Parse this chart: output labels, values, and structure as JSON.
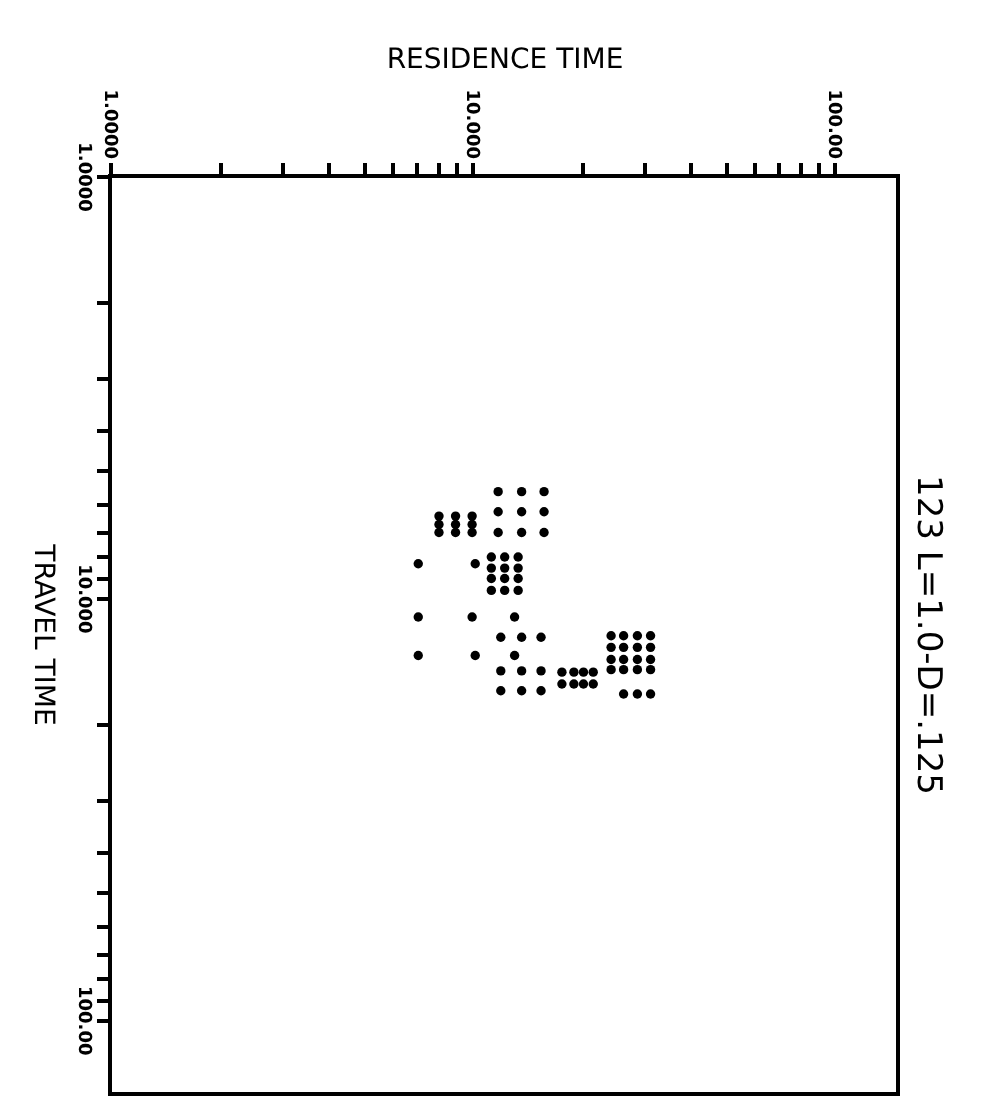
{
  "chart_data": {
    "type": "scatter",
    "title": "123 L=1.0-D=.125",
    "xlabel": "RESIDENCE TIME",
    "ylabel": "TRAVEL TIME",
    "log": "xy",
    "grid": false,
    "marker": "circle",
    "xlim": [
      1,
      150
    ],
    "ylim": [
      150,
      1
    ],
    "xticks": [
      {
        "value": 1,
        "label": "1.0000"
      },
      {
        "value": 2,
        "label": null
      },
      {
        "value": 3,
        "label": null
      },
      {
        "value": 4,
        "label": null
      },
      {
        "value": 5,
        "label": null
      },
      {
        "value": 6,
        "label": null
      },
      {
        "value": 7,
        "label": null
      },
      {
        "value": 8,
        "label": null
      },
      {
        "value": 9,
        "label": null
      },
      {
        "value": 10,
        "label": "10.000"
      },
      {
        "value": 20,
        "label": null
      },
      {
        "value": 30,
        "label": null
      },
      {
        "value": 40,
        "label": null
      },
      {
        "value": 50,
        "label": null
      },
      {
        "value": 60,
        "label": null
      },
      {
        "value": 70,
        "label": null
      },
      {
        "value": 80,
        "label": null
      },
      {
        "value": 90,
        "label": null
      },
      {
        "value": 100,
        "label": "100.00"
      }
    ],
    "yticks": [
      {
        "value": 1,
        "label": "1.0000"
      },
      {
        "value": 2,
        "label": null
      },
      {
        "value": 3,
        "label": null
      },
      {
        "value": 4,
        "label": null
      },
      {
        "value": 5,
        "label": null
      },
      {
        "value": 6,
        "label": null
      },
      {
        "value": 7,
        "label": null
      },
      {
        "value": 8,
        "label": null
      },
      {
        "value": 9,
        "label": null
      },
      {
        "value": 10,
        "label": "10.000"
      },
      {
        "value": 20,
        "label": null
      },
      {
        "value": 30,
        "label": null
      },
      {
        "value": 40,
        "label": null
      },
      {
        "value": 50,
        "label": null
      },
      {
        "value": 60,
        "label": null
      },
      {
        "value": 70,
        "label": null
      },
      {
        "value": 80,
        "label": null
      },
      {
        "value": 90,
        "label": null
      },
      {
        "value": 100,
        "label": "100.00"
      }
    ],
    "series": [
      {
        "color": "#000000",
        "x": [
          11.8,
          13.7,
          15.8,
          11.8,
          13.7,
          15.8,
          11.8,
          13.7,
          15.8,
          8.1,
          9.0,
          10.0,
          8.1,
          9.0,
          10.0,
          8.1,
          9.0,
          10.0,
          7.1,
          10.2,
          11.3,
          12.3,
          13.4,
          11.3,
          12.3,
          13.4,
          11.3,
          12.3,
          13.4,
          11.3,
          12.3,
          13.4,
          7.1,
          10.0,
          13.1,
          7.1,
          10.2,
          13.1,
          12.0,
          13.7,
          15.5,
          12.0,
          13.7,
          15.5,
          12.0,
          13.7,
          15.5,
          17.7,
          19.1,
          20.3,
          21.6,
          17.7,
          19.1,
          20.3,
          21.6,
          24.2,
          26.2,
          28.6,
          31.1,
          24.2,
          26.2,
          28.6,
          31.1,
          24.2,
          26.2,
          28.6,
          31.1,
          24.2,
          26.2,
          28.6,
          31.1,
          26.2,
          28.6,
          31.1
        ],
        "values": [
          5.6,
          5.6,
          5.6,
          6.25,
          6.25,
          6.25,
          7.0,
          7.0,
          7.0,
          6.4,
          6.4,
          6.4,
          6.7,
          6.7,
          6.7,
          7.0,
          7.0,
          7.0,
          8.3,
          8.3,
          8.0,
          8.0,
          8.0,
          8.5,
          8.5,
          8.5,
          9.0,
          9.0,
          9.0,
          9.6,
          9.6,
          9.6,
          11.1,
          11.1,
          11.1,
          13.7,
          13.7,
          13.7,
          12.4,
          12.4,
          12.4,
          14.9,
          14.9,
          14.9,
          16.6,
          16.6,
          16.6,
          15.0,
          15.0,
          15.0,
          15.0,
          16.0,
          16.0,
          16.0,
          16.0,
          12.3,
          12.3,
          12.3,
          12.3,
          13.1,
          13.1,
          13.1,
          13.1,
          14.0,
          14.0,
          14.0,
          14.0,
          14.8,
          14.8,
          14.8,
          14.8,
          16.9,
          16.9,
          16.9
        ]
      }
    ]
  }
}
